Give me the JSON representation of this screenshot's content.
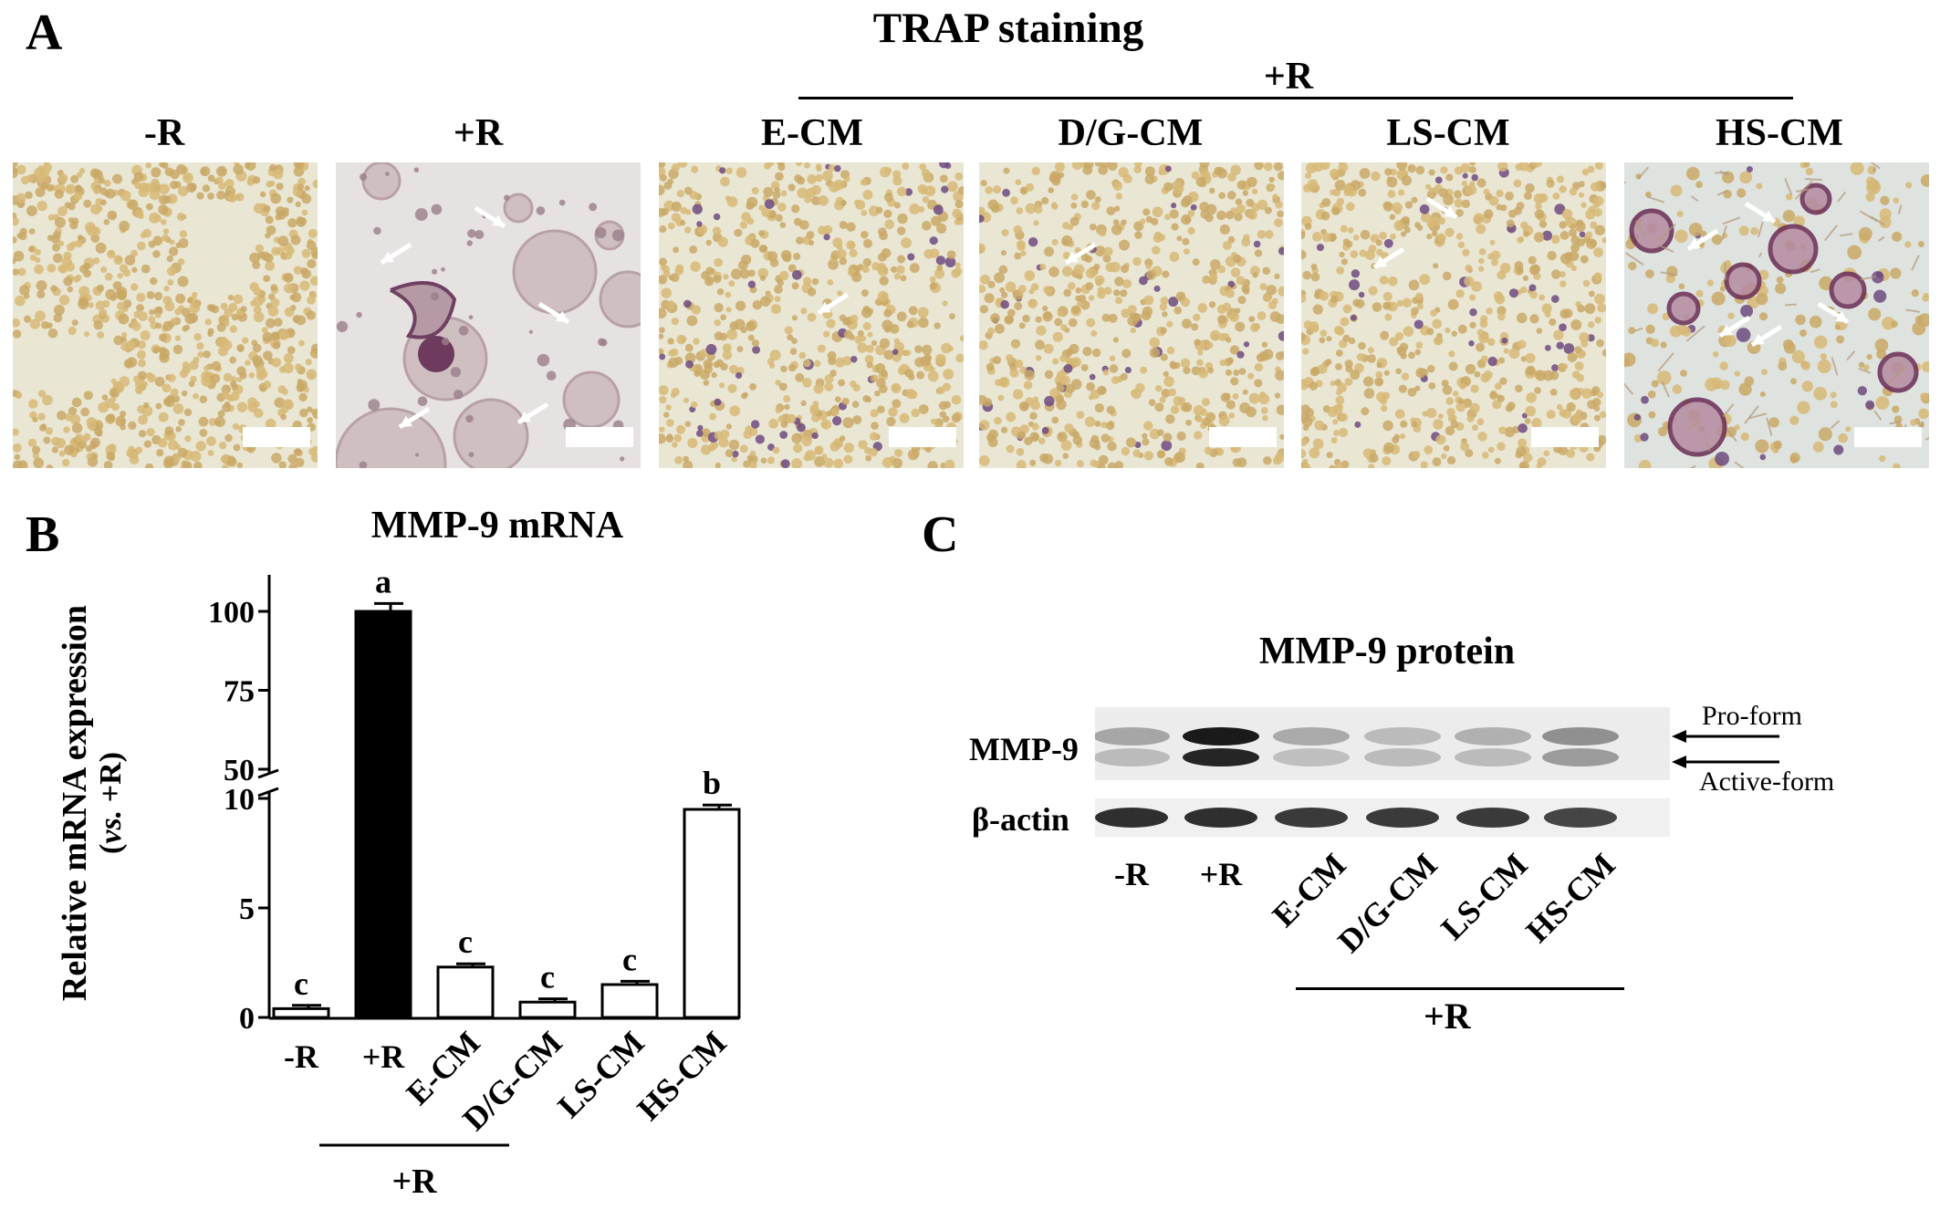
{
  "panelA": {
    "letter": "A",
    "title": "TRAP staining",
    "group_label": "+R",
    "images": [
      {
        "label": "-R"
      },
      {
        "label": "+R"
      },
      {
        "label": "E-CM"
      },
      {
        "label": "D/G-CM"
      },
      {
        "label": "LS-CM"
      },
      {
        "label": "HS-CM"
      }
    ]
  },
  "panelB": {
    "letter": "B",
    "title": "MMP-9 mRNA",
    "ylabel_main": "Relative mRNA expression",
    "ylabel_sub_italic": "vs.",
    "ylabel_sub_rest": " +R)",
    "ylabel_sub_open": "(",
    "group_label": "+R"
  },
  "chart_data": {
    "type": "bar",
    "title": "MMP-9 mRNA",
    "ylabel": "Relative mRNA expression (vs. +R)",
    "xlabel": "",
    "broken_axis": true,
    "y_lower_range": [
      0,
      10
    ],
    "y_upper_range": [
      50,
      100
    ],
    "y_lower_ticks": [
      "0",
      "5",
      "10"
    ],
    "y_upper_ticks": [
      "50",
      "75",
      "100"
    ],
    "categories": [
      "-R",
      "+R",
      "E-CM",
      "D/G-CM",
      "LS-CM",
      "HS-CM"
    ],
    "values": [
      0.4,
      100,
      2.3,
      0.7,
      1.5,
      9.5
    ],
    "errors": [
      0.15,
      2.5,
      0.15,
      0.15,
      0.15,
      0.2
    ],
    "significance": [
      "c",
      "a",
      "c",
      "c",
      "c",
      "b"
    ],
    "bar_fill": [
      "white",
      "black",
      "white",
      "white",
      "white",
      "white"
    ],
    "group_label": "+R"
  },
  "panelC": {
    "letter": "C",
    "title": "MMP-9  protein",
    "band1_label": "MMP-9",
    "band2_label": "β-actin",
    "pro_form": "Pro-form",
    "active_form": "Active-form",
    "lanes": [
      "-R",
      "+R",
      "E-CM",
      "D/G-CM",
      "LS-CM",
      "HS-CM"
    ],
    "group_label": "+R",
    "pro_band_intensity": [
      0.3,
      0.95,
      0.28,
      0.2,
      0.25,
      0.4
    ],
    "active_band_intensity": [
      0.2,
      0.9,
      0.18,
      0.2,
      0.2,
      0.35
    ],
    "actin_intensity": [
      0.85,
      0.85,
      0.8,
      0.8,
      0.8,
      0.75
    ]
  }
}
